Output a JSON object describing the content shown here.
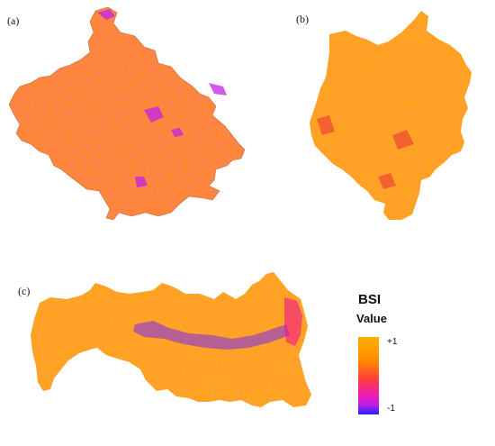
{
  "panels": {
    "a": {
      "label": "(a)"
    },
    "b": {
      "label": "(b)"
    },
    "c": {
      "label": "(c)"
    }
  },
  "legend": {
    "title": "BSI",
    "subtitle": "Value",
    "max_label": "+1",
    "min_label": "-1",
    "colors": [
      "#ffad00",
      "#ff8c00",
      "#ff3d3d",
      "#f01ab4",
      "#b81fe8",
      "#2222ff"
    ]
  }
}
